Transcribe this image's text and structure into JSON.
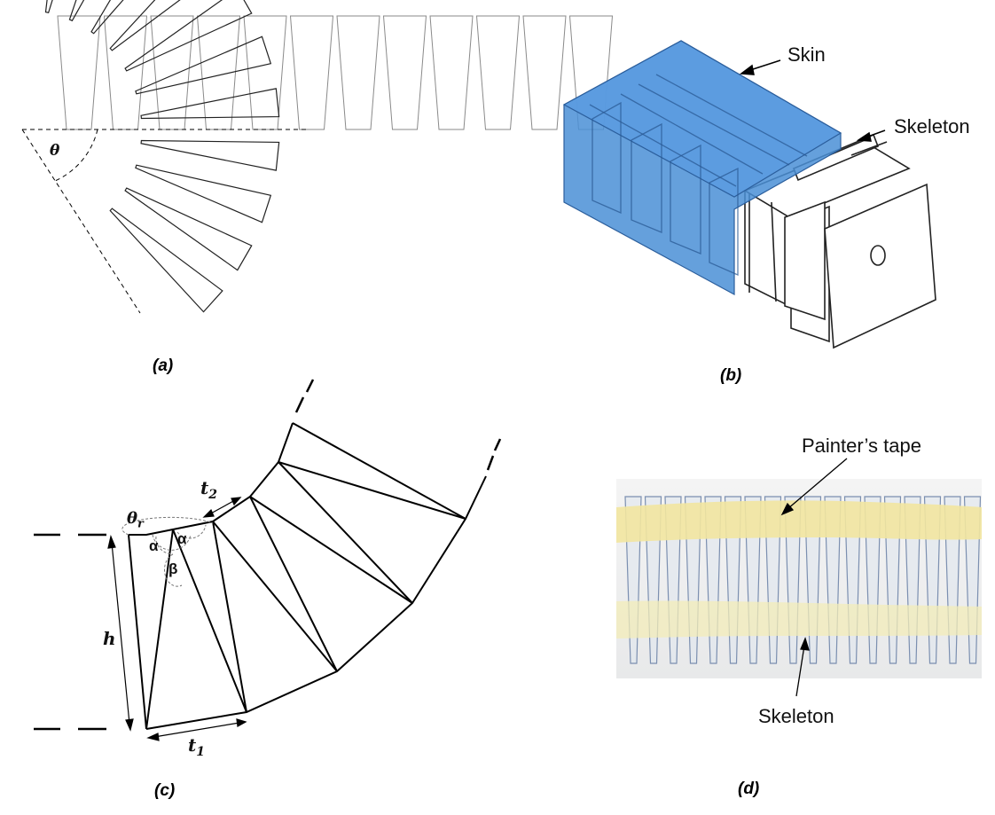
{
  "panels": {
    "a": {
      "caption": "(a)",
      "angle_label": "θ"
    },
    "b": {
      "caption": "(b)",
      "skin_label": "Skin",
      "skeleton_label": "Skeleton"
    },
    "c": {
      "caption": "(c)",
      "theta_r": "θ",
      "theta_r_sub": "r",
      "alpha": "α",
      "beta": "β",
      "h": "h",
      "t1": "t",
      "t1_sub": "1",
      "t2": "t",
      "t2_sub": "2"
    },
    "d": {
      "caption": "(d)",
      "tape_label": "Painter’s tape",
      "skeleton_label": "Skeleton"
    }
  },
  "colors": {
    "skin_fill": "#4a8fd6",
    "tape": "#f2e6a0",
    "ink": "#000000"
  }
}
